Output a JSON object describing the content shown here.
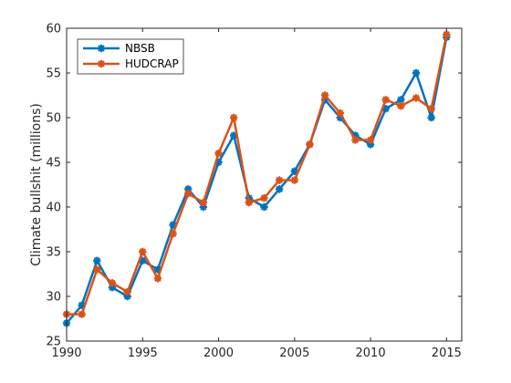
{
  "chart_data": {
    "type": "line",
    "title": "",
    "xlabel": "",
    "ylabel": "Climate bullshit (millions)",
    "xlim": [
      1990,
      2016
    ],
    "ylim": [
      25,
      60
    ],
    "x_ticks": [
      1990,
      1995,
      2000,
      2005,
      2010,
      2015
    ],
    "y_ticks": [
      25,
      30,
      35,
      40,
      45,
      50,
      55,
      60
    ],
    "grid": false,
    "legend_position": "top-left",
    "x": [
      1990,
      1991,
      1992,
      1993,
      1994,
      1995,
      1996,
      1997,
      1998,
      1999,
      2000,
      2001,
      2002,
      2003,
      2004,
      2005,
      2006,
      2007,
      2008,
      2009,
      2010,
      2011,
      2012,
      2013,
      2014,
      2015
    ],
    "series": [
      {
        "name": "NBSB",
        "color": "#0072BD",
        "marker": "asterisk",
        "values": [
          27,
          29,
          34,
          31,
          30,
          34,
          33,
          38,
          42,
          40,
          45,
          48,
          41,
          40,
          42,
          44,
          47,
          52,
          50,
          48,
          47,
          51,
          52,
          55,
          50,
          59
        ]
      },
      {
        "name": "HUDCRAP",
        "color": "#D95319",
        "marker": "asterisk",
        "values": [
          28,
          28,
          33,
          31.5,
          30.5,
          35,
          32,
          37,
          41.5,
          40.5,
          46,
          50,
          40.5,
          41,
          43,
          43,
          47,
          52.5,
          50.5,
          47.5,
          47.5,
          52,
          51.3,
          52.2,
          51,
          59.3
        ]
      }
    ]
  }
}
